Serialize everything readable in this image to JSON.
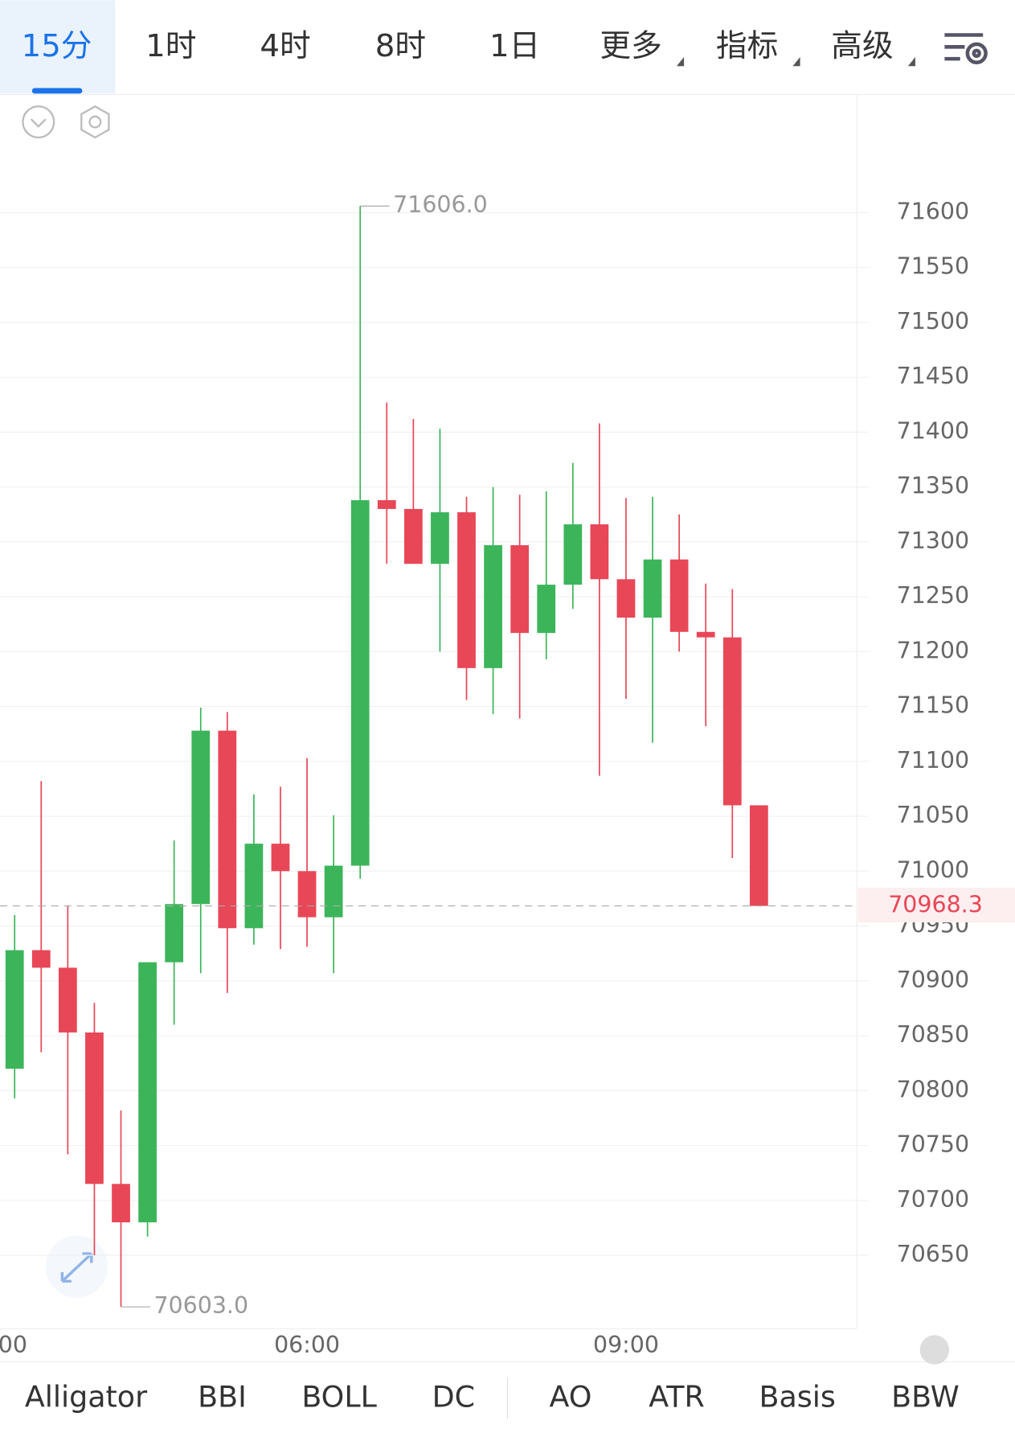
{
  "tabs": [
    "15分",
    "1时",
    "4时",
    "8时",
    "1日",
    "更多",
    "指标",
    "高级"
  ],
  "selected_tab": "15分",
  "indicators": [
    "Alligator",
    "BBI",
    "BOLL",
    "DC",
    "AO",
    "ATR",
    "Basis",
    "BBW"
  ],
  "chart_data": {
    "type": "candlestick",
    "categories": [
      null,
      null,
      null,
      null,
      null,
      null,
      null,
      null,
      null,
      null,
      null,
      "06:00",
      null,
      null,
      null,
      null,
      null,
      null,
      null,
      null,
      null,
      null,
      null,
      "09:00",
      null,
      null,
      null,
      null,
      null
    ],
    "edge_label": "00",
    "open": [
      70820,
      70928,
      70912,
      70853,
      70715,
      70680,
      70917,
      70970,
      71128,
      70948,
      71025,
      71000,
      70958,
      71005,
      71338,
      71330,
      71280,
      71327,
      71185,
      71297,
      71217,
      71261,
      71316,
      71266,
      71231,
      71284,
      71218,
      71213,
      71060
    ],
    "high": [
      70960,
      71082,
      70968,
      70880,
      70782,
      70917,
      71028,
      71149,
      71145,
      71070,
      71077,
      71103,
      71051,
      71606,
      71427,
      71412,
      71403,
      71341,
      71350,
      71343,
      71346,
      71372,
      71408,
      71340,
      71341,
      71325,
      71262,
      71257,
      71060
    ],
    "low": [
      70793,
      70835,
      70742,
      70650,
      70603,
      70667,
      70860,
      70907,
      70889,
      70933,
      70929,
      70931,
      70907,
      70993,
      71280,
      71280,
      71200,
      71156,
      71143,
      71139,
      71193,
      71239,
      71087,
      71157,
      71117,
      71200,
      71132,
      71012,
      70968.3
    ],
    "close": [
      70928,
      70912,
      70853,
      70715,
      70680,
      70917,
      70970,
      71128,
      70948,
      71025,
      71000,
      70958,
      71005,
      71338,
      71330,
      71280,
      71327,
      71185,
      71297,
      71217,
      71261,
      71316,
      71266,
      71231,
      71284,
      71218,
      71213,
      71060,
      70968.3
    ],
    "up_color": "#3cb55a",
    "down_color": "#e84757",
    "ylim": [
      70583,
      71706
    ],
    "yticks": [
      71600,
      71550,
      71500,
      71450,
      71400,
      71350,
      71300,
      71250,
      71200,
      71150,
      71100,
      71050,
      71000,
      70950,
      70900,
      70850,
      70800,
      70750,
      70700,
      70650
    ],
    "grid": true,
    "high_label": {
      "value": 71606,
      "label": "71606.0"
    },
    "low_label": {
      "value": 70603,
      "label": "70603.0"
    },
    "last_price": {
      "value": 70968.3,
      "label": "70968.3"
    }
  }
}
